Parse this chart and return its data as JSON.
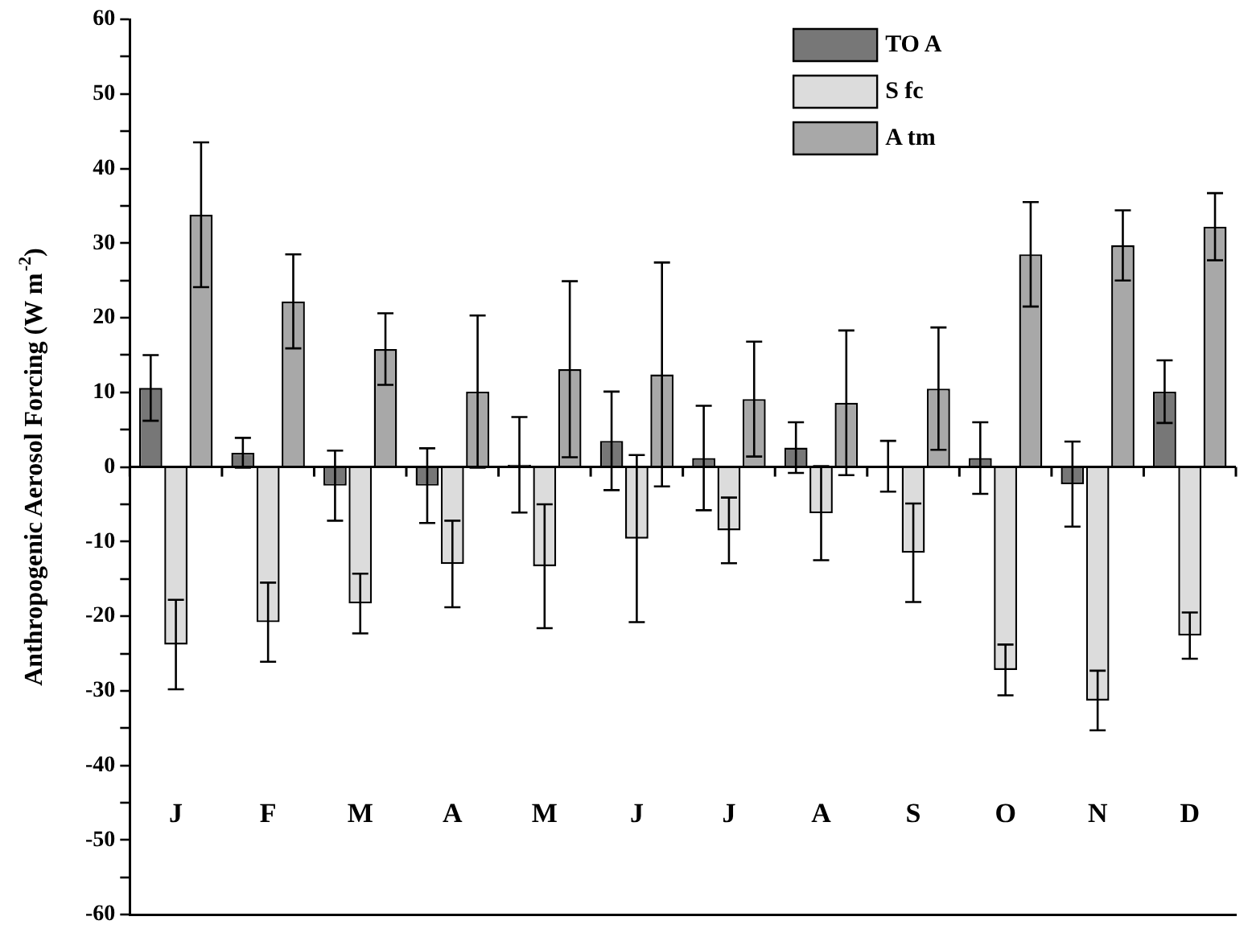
{
  "chart_data": {
    "type": "bar",
    "ylabel": "Anthropogenic Aerosol Forcing (W m$^{-2}$)",
    "categories": [
      "J",
      "F",
      "M",
      "A",
      "M",
      "J",
      "J",
      "A",
      "S",
      "O",
      "N",
      "D"
    ],
    "series": [
      {
        "name": "TO A",
        "color": "#777777",
        "values": [
          10.6,
          1.9,
          -2.5,
          -2.5,
          0.3,
          3.5,
          1.2,
          2.6,
          0.1,
          1.2,
          -2.3,
          10.1
        ],
        "errors": [
          4.4,
          2,
          4.7,
          5,
          6.4,
          6.6,
          7,
          3.4,
          3.4,
          4.8,
          5.7,
          4.2
        ]
      },
      {
        "name": "S fc",
        "color": "#dcdcdc",
        "values": [
          -23.8,
          -20.8,
          -18.3,
          -13,
          -13.3,
          -9.6,
          -8.5,
          -6.2,
          -11.5,
          -27.2,
          -31.3,
          -22.6
        ],
        "errors": [
          6,
          5.3,
          4,
          5.8,
          8.3,
          11.2,
          4.4,
          6.3,
          6.6,
          3.4,
          4,
          3.1
        ]
      },
      {
        "name": "A tm",
        "color": "#a8a8a8",
        "values": [
          33.8,
          22.2,
          15.8,
          10.1,
          13.1,
          12.4,
          9.1,
          8.6,
          10.5,
          28.5,
          29.7,
          32.2
        ],
        "errors": [
          9.7,
          6.3,
          4.8,
          10.2,
          11.8,
          15,
          7.7,
          9.7,
          8.2,
          7,
          4.7,
          4.5
        ]
      }
    ],
    "ylim": [
      -60,
      60
    ],
    "yticks": [
      -60,
      {
        "value": -55,
        "label": null
      },
      -50,
      {
        "value": -45,
        "label": null
      },
      -40,
      {
        "value": -35,
        "label": null
      },
      -30,
      {
        "value": -25,
        "label": null
      },
      -20,
      {
        "value": -15,
        "label": null
      },
      -10,
      {
        "value": -5,
        "label": null
      },
      0,
      {
        "value": 5,
        "label": null
      },
      10,
      {
        "value": 15,
        "label": null
      },
      20,
      {
        "value": 25,
        "label": null
      },
      30,
      {
        "value": 35,
        "label": null
      },
      40,
      {
        "value": 45,
        "label": null
      },
      50,
      {
        "value": 55,
        "label": null
      },
      60
    ],
    "ref_lines": [
      {
        "axis": "y",
        "value": 0,
        "color": "#000000",
        "line_style": "solid"
      }
    ],
    "legend": "top right"
  }
}
